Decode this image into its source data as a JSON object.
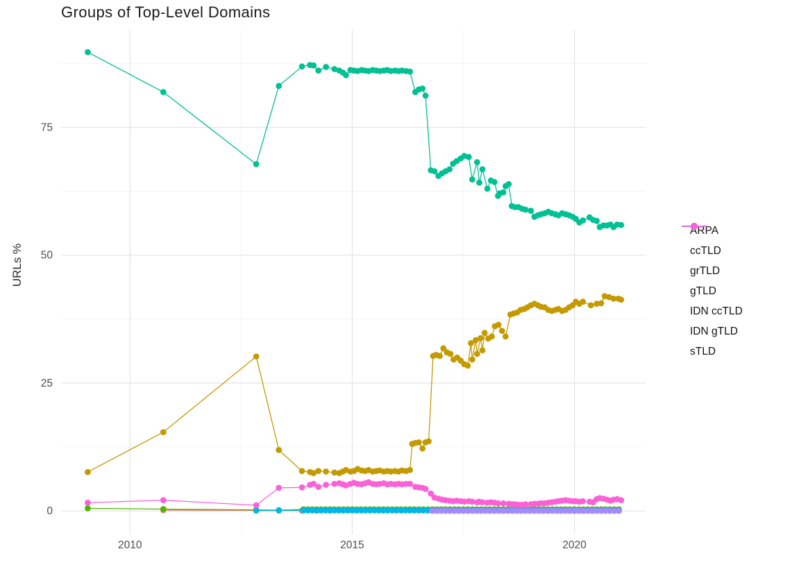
{
  "page": {
    "title": "Groups of Top-Level Domains"
  },
  "chart_data": {
    "type": "line",
    "title": "Groups of Top-Level Domains",
    "xlabel": "",
    "ylabel": "URLs %",
    "x_ticks": {
      "values": [
        2010,
        2015,
        2020
      ],
      "labels": [
        "2010",
        "2015",
        "2020"
      ]
    },
    "x_minor_gridlines": [
      2012.5,
      2017.5
    ],
    "y_ticks": {
      "values": [
        0,
        25,
        50,
        75
      ],
      "labels": [
        "0",
        "25",
        "50",
        "75"
      ]
    },
    "y_minor_gridlines": [
      12.5,
      37.5,
      62.5,
      87.5
    ],
    "xlim": [
      2008.45,
      2021.6
    ],
    "ylim": [
      -4.6,
      94.2
    ],
    "grid": true,
    "legend_position": "right",
    "colors": {
      "major_grid": "#e4e4e4",
      "minor_grid": "#f1f1f1",
      "axis_text": "#4d4d4d",
      "title_text": "#1a1a1a"
    },
    "series": [
      {
        "name": "ARPA",
        "color": "#F8766D",
        "points": [
          [
            2010.75,
            0.15
          ],
          [
            2012.84,
            0.1
          ],
          [
            2013.35,
            0.08
          ],
          [
            2013.87,
            0.05
          ],
          [
            2014.2,
            0.05
          ],
          [
            2014.5,
            0.05
          ]
        ]
      },
      {
        "name": "ccTLD",
        "color": "#C49A00",
        "points": [
          [
            2009.05,
            7.6
          ],
          [
            2010.75,
            15.4
          ],
          [
            2012.84,
            30.2
          ],
          [
            2013.35,
            11.9
          ],
          [
            2013.87,
            7.8
          ],
          [
            2014.05,
            7.6
          ],
          [
            2014.13,
            7.4
          ],
          [
            2014.24,
            7.8
          ],
          [
            2014.41,
            7.7
          ],
          [
            2014.6,
            7.5
          ],
          [
            2014.71,
            7.4
          ],
          [
            2014.79,
            7.7
          ],
          [
            2014.86,
            8.0
          ],
          [
            2014.96,
            7.7
          ],
          [
            2015.04,
            7.8
          ],
          [
            2015.12,
            8.2
          ],
          [
            2015.21,
            7.9
          ],
          [
            2015.29,
            7.8
          ],
          [
            2015.37,
            8.0
          ],
          [
            2015.46,
            7.7
          ],
          [
            2015.54,
            7.8
          ],
          [
            2015.62,
            7.9
          ],
          [
            2015.71,
            7.7
          ],
          [
            2015.79,
            7.8
          ],
          [
            2015.87,
            7.7
          ],
          [
            2015.96,
            7.8
          ],
          [
            2016.04,
            7.7
          ],
          [
            2016.12,
            7.9
          ],
          [
            2016.21,
            7.8
          ],
          [
            2016.3,
            8.0
          ],
          [
            2016.35,
            13.1
          ],
          [
            2016.42,
            13.3
          ],
          [
            2016.5,
            13.4
          ],
          [
            2016.58,
            12.2
          ],
          [
            2016.65,
            13.4
          ],
          [
            2016.72,
            13.6
          ],
          [
            2016.82,
            30.3
          ],
          [
            2016.89,
            30.5
          ],
          [
            2016.97,
            30.3
          ],
          [
            2017.05,
            31.8
          ],
          [
            2017.13,
            31.0
          ],
          [
            2017.21,
            30.7
          ],
          [
            2017.28,
            29.6
          ],
          [
            2017.36,
            30.0
          ],
          [
            2017.44,
            29.4
          ],
          [
            2017.52,
            28.7
          ],
          [
            2017.6,
            28.4
          ],
          [
            2017.67,
            32.8
          ],
          [
            2017.7,
            29.6
          ],
          [
            2017.78,
            33.4
          ],
          [
            2017.81,
            30.7
          ],
          [
            2017.89,
            33.8
          ],
          [
            2017.93,
            31.4
          ],
          [
            2017.98,
            34.8
          ],
          [
            2018.06,
            33.7
          ],
          [
            2018.14,
            34.1
          ],
          [
            2018.21,
            36.1
          ],
          [
            2018.29,
            36.4
          ],
          [
            2018.37,
            35.2
          ],
          [
            2018.45,
            34.1
          ],
          [
            2018.56,
            38.4
          ],
          [
            2018.63,
            38.6
          ],
          [
            2018.71,
            38.8
          ],
          [
            2018.79,
            39.3
          ],
          [
            2018.87,
            39.5
          ],
          [
            2018.94,
            39.8
          ],
          [
            2019.02,
            40.2
          ],
          [
            2019.1,
            40.5
          ],
          [
            2019.18,
            40.2
          ],
          [
            2019.25,
            39.9
          ],
          [
            2019.33,
            39.8
          ],
          [
            2019.41,
            39.3
          ],
          [
            2019.49,
            39.1
          ],
          [
            2019.57,
            39.3
          ],
          [
            2019.64,
            39.5
          ],
          [
            2019.72,
            39.1
          ],
          [
            2019.8,
            39.3
          ],
          [
            2019.88,
            39.8
          ],
          [
            2019.96,
            40.2
          ],
          [
            2020.03,
            40.9
          ],
          [
            2020.11,
            40.5
          ],
          [
            2020.19,
            40.9
          ],
          [
            2020.37,
            40.2
          ],
          [
            2020.5,
            40.5
          ],
          [
            2020.6,
            40.6
          ],
          [
            2020.68,
            42.0
          ],
          [
            2020.78,
            41.8
          ],
          [
            2020.88,
            41.5
          ],
          [
            2020.99,
            41.5
          ],
          [
            2021.05,
            41.3
          ]
        ]
      },
      {
        "name": "grTLD",
        "color": "#53B400",
        "points": [
          [
            2009.05,
            0.5
          ],
          [
            2010.75,
            0.35
          ],
          [
            2012.84,
            0.2
          ],
          [
            2013.35,
            0.15
          ]
        ],
        "flat": {
          "start": 2013.9,
          "end": 2021.05,
          "step": 0.1,
          "value": 0.3
        }
      },
      {
        "name": "gTLD",
        "color": "#00C094",
        "points": [
          [
            2009.05,
            89.7
          ],
          [
            2010.75,
            81.9
          ],
          [
            2012.84,
            67.8
          ],
          [
            2013.35,
            83.1
          ],
          [
            2013.87,
            86.9
          ],
          [
            2014.05,
            87.2
          ],
          [
            2014.13,
            87.1
          ],
          [
            2014.24,
            86.1
          ],
          [
            2014.41,
            86.8
          ],
          [
            2014.6,
            86.4
          ],
          [
            2014.71,
            86.1
          ],
          [
            2014.79,
            85.7
          ],
          [
            2014.86,
            85.2
          ],
          [
            2014.96,
            86.2
          ],
          [
            2015.04,
            86.1
          ],
          [
            2015.12,
            86.0
          ],
          [
            2015.21,
            86.2
          ],
          [
            2015.29,
            86.1
          ],
          [
            2015.37,
            86.0
          ],
          [
            2015.46,
            86.2
          ],
          [
            2015.54,
            86.1
          ],
          [
            2015.62,
            86.0
          ],
          [
            2015.71,
            86.1
          ],
          [
            2015.79,
            86.2
          ],
          [
            2015.87,
            86.0
          ],
          [
            2015.96,
            86.1
          ],
          [
            2016.04,
            86.0
          ],
          [
            2016.12,
            86.1
          ],
          [
            2016.21,
            86.0
          ],
          [
            2016.3,
            85.9
          ],
          [
            2016.42,
            81.9
          ],
          [
            2016.5,
            82.4
          ],
          [
            2016.58,
            82.6
          ],
          [
            2016.65,
            81.2
          ],
          [
            2016.77,
            66.6
          ],
          [
            2016.85,
            66.4
          ],
          [
            2016.94,
            65.5
          ],
          [
            2017.02,
            66.0
          ],
          [
            2017.1,
            66.4
          ],
          [
            2017.19,
            66.8
          ],
          [
            2017.27,
            67.9
          ],
          [
            2017.35,
            68.4
          ],
          [
            2017.44,
            68.9
          ],
          [
            2017.52,
            69.4
          ],
          [
            2017.62,
            69.2
          ],
          [
            2017.7,
            64.8
          ],
          [
            2017.81,
            68.2
          ],
          [
            2017.86,
            64.2
          ],
          [
            2017.93,
            66.8
          ],
          [
            2018.04,
            63.0
          ],
          [
            2018.12,
            64.6
          ],
          [
            2018.2,
            64.3
          ],
          [
            2018.28,
            61.6
          ],
          [
            2018.32,
            62.1
          ],
          [
            2018.4,
            62.3
          ],
          [
            2018.45,
            63.5
          ],
          [
            2018.52,
            63.9
          ],
          [
            2018.59,
            59.6
          ],
          [
            2018.66,
            59.4
          ],
          [
            2018.74,
            59.4
          ],
          [
            2018.82,
            59.1
          ],
          [
            2018.9,
            58.9
          ],
          [
            2019.02,
            58.7
          ],
          [
            2019.1,
            57.5
          ],
          [
            2019.18,
            57.8
          ],
          [
            2019.25,
            58.0
          ],
          [
            2019.33,
            58.2
          ],
          [
            2019.41,
            58.5
          ],
          [
            2019.49,
            58.2
          ],
          [
            2019.57,
            58.0
          ],
          [
            2019.64,
            57.8
          ],
          [
            2019.72,
            58.2
          ],
          [
            2019.8,
            58.0
          ],
          [
            2019.88,
            57.8
          ],
          [
            2019.96,
            57.5
          ],
          [
            2020.03,
            57.1
          ],
          [
            2020.11,
            56.4
          ],
          [
            2020.19,
            56.8
          ],
          [
            2020.34,
            57.4
          ],
          [
            2020.42,
            56.9
          ],
          [
            2020.5,
            56.7
          ],
          [
            2020.57,
            55.5
          ],
          [
            2020.65,
            55.8
          ],
          [
            2020.73,
            55.8
          ],
          [
            2020.81,
            56.0
          ],
          [
            2020.88,
            55.5
          ],
          [
            2020.96,
            56.0
          ],
          [
            2021.05,
            55.9
          ]
        ]
      },
      {
        "name": "IDN ccTLD",
        "color": "#00B6EB",
        "points": [
          [
            2012.84,
            0.05
          ],
          [
            2013.35,
            0.1
          ]
        ],
        "flat": {
          "start": 2013.9,
          "end": 2021.05,
          "step": 0.1,
          "value": 0.1
        }
      },
      {
        "name": "IDN gTLD",
        "color": "#A58AFF",
        "points": [],
        "flat": {
          "start": 2016.8,
          "end": 2021.05,
          "step": 0.1,
          "value": 0.02
        }
      },
      {
        "name": "sTLD",
        "color": "#FB61D7",
        "points": [
          [
            2009.05,
            1.6
          ],
          [
            2010.75,
            2.1
          ],
          [
            2012.84,
            1.1
          ],
          [
            2013.35,
            4.5
          ],
          [
            2013.87,
            4.6
          ],
          [
            2014.05,
            5.1
          ],
          [
            2014.13,
            5.3
          ],
          [
            2014.24,
            4.7
          ],
          [
            2014.41,
            5.1
          ],
          [
            2014.6,
            5.3
          ],
          [
            2014.71,
            5.4
          ],
          [
            2014.79,
            5.2
          ],
          [
            2014.86,
            5.0
          ],
          [
            2014.96,
            5.3
          ],
          [
            2015.04,
            5.5
          ],
          [
            2015.12,
            5.3
          ],
          [
            2015.21,
            5.2
          ],
          [
            2015.29,
            5.4
          ],
          [
            2015.37,
            5.6
          ],
          [
            2015.46,
            5.3
          ],
          [
            2015.54,
            5.2
          ],
          [
            2015.62,
            5.3
          ],
          [
            2015.71,
            5.4
          ],
          [
            2015.79,
            5.2
          ],
          [
            2015.87,
            5.3
          ],
          [
            2015.96,
            5.2
          ],
          [
            2016.04,
            5.3
          ],
          [
            2016.12,
            5.2
          ],
          [
            2016.21,
            5.3
          ],
          [
            2016.3,
            5.3
          ],
          [
            2016.42,
            4.7
          ],
          [
            2016.5,
            4.6
          ],
          [
            2016.58,
            4.5
          ],
          [
            2016.65,
            4.3
          ],
          [
            2016.77,
            3.4
          ],
          [
            2016.85,
            2.6
          ],
          [
            2016.94,
            2.4
          ],
          [
            2017.02,
            2.2
          ],
          [
            2017.1,
            2.1
          ],
          [
            2017.19,
            2.0
          ],
          [
            2017.27,
            1.9
          ],
          [
            2017.35,
            2.0
          ],
          [
            2017.44,
            1.9
          ],
          [
            2017.52,
            1.8
          ],
          [
            2017.62,
            1.9
          ],
          [
            2017.7,
            1.8
          ],
          [
            2017.81,
            1.7
          ],
          [
            2017.86,
            1.8
          ],
          [
            2017.93,
            1.7
          ],
          [
            2018.04,
            1.6
          ],
          [
            2018.12,
            1.7
          ],
          [
            2018.2,
            1.6
          ],
          [
            2018.28,
            1.5
          ],
          [
            2018.4,
            1.5
          ],
          [
            2018.52,
            1.4
          ],
          [
            2018.59,
            1.3
          ],
          [
            2018.66,
            1.3
          ],
          [
            2018.74,
            1.2
          ],
          [
            2018.82,
            1.2
          ],
          [
            2018.9,
            1.3
          ],
          [
            2019.02,
            1.3
          ],
          [
            2019.1,
            1.4
          ],
          [
            2019.18,
            1.4
          ],
          [
            2019.25,
            1.5
          ],
          [
            2019.33,
            1.5
          ],
          [
            2019.41,
            1.6
          ],
          [
            2019.49,
            1.7
          ],
          [
            2019.57,
            1.8
          ],
          [
            2019.64,
            1.9
          ],
          [
            2019.72,
            2.0
          ],
          [
            2019.8,
            2.1
          ],
          [
            2019.88,
            2.0
          ],
          [
            2019.96,
            1.9
          ],
          [
            2020.03,
            1.9
          ],
          [
            2020.11,
            1.8
          ],
          [
            2020.19,
            1.9
          ],
          [
            2020.34,
            1.8
          ],
          [
            2020.42,
            1.7
          ],
          [
            2020.5,
            2.3
          ],
          [
            2020.57,
            2.5
          ],
          [
            2020.65,
            2.4
          ],
          [
            2020.73,
            2.2
          ],
          [
            2020.81,
            2.0
          ],
          [
            2020.88,
            2.2
          ],
          [
            2020.96,
            2.3
          ],
          [
            2021.05,
            2.1
          ]
        ]
      }
    ]
  }
}
